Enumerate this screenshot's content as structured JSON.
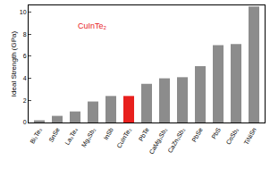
{
  "chart_data": {
    "type": "bar",
    "y_label": "Ideal Strength (GPa)",
    "categories": [
      "Bi₂Te₃",
      "SnSe",
      "La₃Te₄",
      "Mg₃Sb₂",
      "InSb",
      "CuInTe₂",
      "PbTe",
      "CaMg₂Sb₂",
      "CaZn₂Sb₂",
      "PbSe",
      "PbS",
      "CoSb₃",
      "TiNiSn"
    ],
    "values": [
      0.2,
      0.6,
      1.0,
      1.9,
      2.4,
      2.4,
      3.5,
      4.0,
      4.1,
      5.1,
      7.0,
      7.1,
      10.5
    ],
    "colors": [
      "#8c8c8c",
      "#8c8c8c",
      "#8c8c8c",
      "#8c8c8c",
      "#8c8c8c",
      "#e8201e",
      "#8c8c8c",
      "#8c8c8c",
      "#8c8c8c",
      "#8c8c8c",
      "#8c8c8c",
      "#8c8c8c",
      "#8c8c8c"
    ],
    "ylim": [
      0,
      10.6
    ],
    "yticks": [
      0,
      2,
      4,
      6,
      8,
      10
    ],
    "annotations": [
      {
        "text": "CuInTe₂",
        "color": "#e8201e"
      }
    ],
    "grid": false
  }
}
